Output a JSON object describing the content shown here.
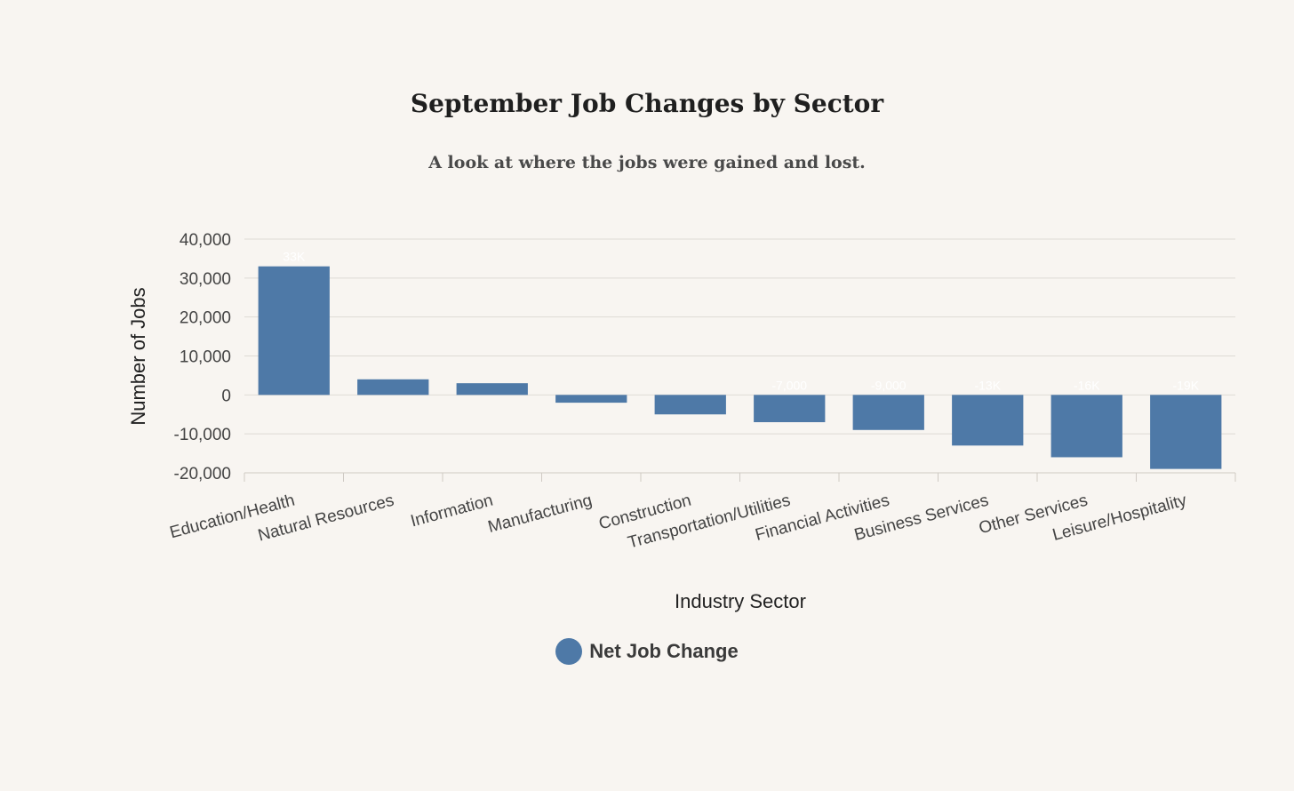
{
  "chart_data": {
    "type": "bar",
    "title": "September Job Changes by Sector",
    "subtitle": "A look at where the jobs were gained and lost.",
    "xlabel": "Industry Sector",
    "ylabel": "Number of Jobs",
    "ylim": [
      -20000,
      40000
    ],
    "yticks": [
      40000,
      30000,
      20000,
      10000,
      0,
      -10000,
      -20000
    ],
    "ytick_labels": [
      "40,000",
      "30,000",
      "20,000",
      "10,000",
      "0",
      "-10,000",
      "-20,000"
    ],
    "grid": true,
    "legend_position": "bottom-center",
    "categories": [
      "Education/Health",
      "Natural Resources",
      "Information",
      "Manufacturing",
      "Construction",
      "Transportation/Utilities",
      "Financial Activities",
      "Business Services",
      "Other Services",
      "Leisure/Hospitality"
    ],
    "series": [
      {
        "name": "Net Job Change",
        "color": "#4e79a7",
        "values": [
          33000,
          4000,
          3000,
          -2000,
          -5000,
          -7000,
          -9000,
          -13000,
          -16000,
          -19000
        ],
        "data_labels": [
          "33K",
          "",
          "",
          "",
          "",
          "-7,000",
          "-9,000",
          "-13K",
          "-16K",
          "-19K"
        ]
      }
    ]
  }
}
